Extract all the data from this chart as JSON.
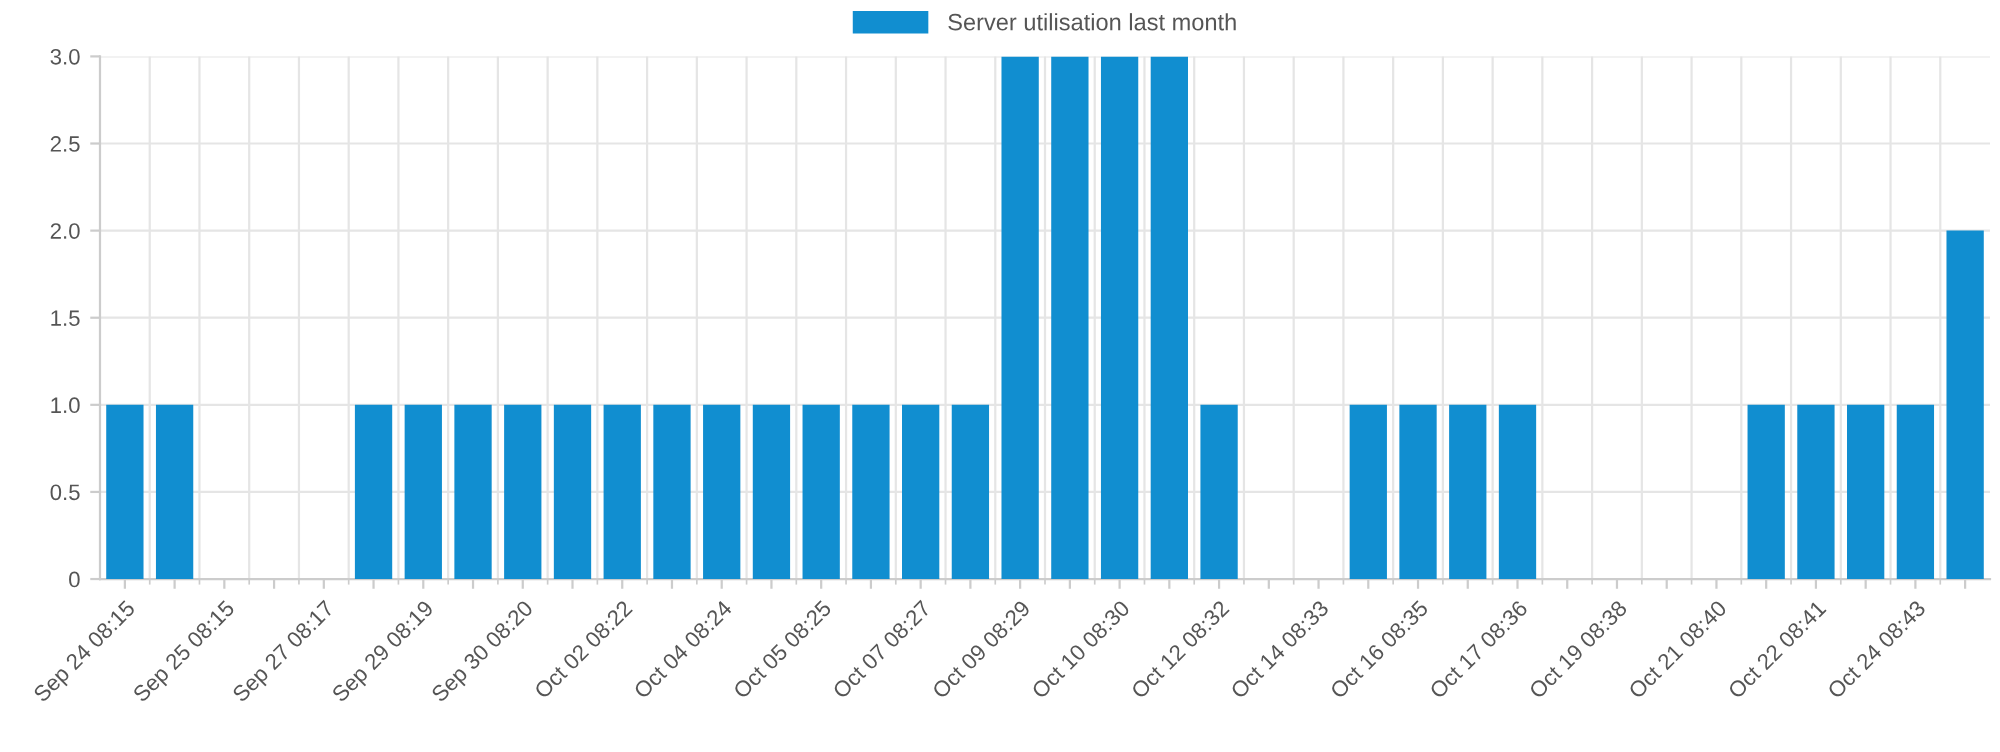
{
  "chart_data": {
    "type": "bar",
    "categories": [
      "Sep 24 08:15",
      null,
      "Sep 25 08:15",
      null,
      "Sep 27 08:17",
      null,
      "Sep 29 08:19",
      null,
      "Sep 30 08:20",
      null,
      "Oct 02 08:22",
      null,
      "Oct 04 08:24",
      null,
      "Oct 05 08:25",
      null,
      "Oct 07 08:27",
      null,
      "Oct 09 08:29",
      null,
      "Oct 10 08:30",
      null,
      "Oct 12 08:32",
      null,
      "Oct 14 08:33",
      null,
      "Oct 16 08:35",
      null,
      "Oct 17 08:36",
      null,
      "Oct 19 08:38",
      null,
      "Oct 21 08:40",
      null,
      "Oct 22 08:41",
      null,
      "Oct 24 08:43",
      null
    ],
    "series": [
      {
        "name": "Server utilisation last month",
        "color": "#118ed0",
        "values": [
          1,
          1,
          0,
          0,
          0,
          1,
          1,
          1,
          1,
          1,
          1,
          1,
          1,
          1,
          1,
          1,
          1,
          1,
          3,
          3,
          3,
          3,
          1,
          0,
          0,
          1,
          1,
          1,
          1,
          0,
          0,
          0,
          0,
          1,
          1,
          1,
          1,
          2
        ]
      }
    ],
    "ylim": [
      0,
      3
    ],
    "yticks": [
      0,
      0.5,
      {
        "value": 1,
        "label": "1.0"
      },
      1.5,
      {
        "value": 2,
        "label": "2.0"
      },
      2.5,
      {
        "value": 3,
        "label": "3.0"
      }
    ],
    "grid": true,
    "legend": "top"
  }
}
